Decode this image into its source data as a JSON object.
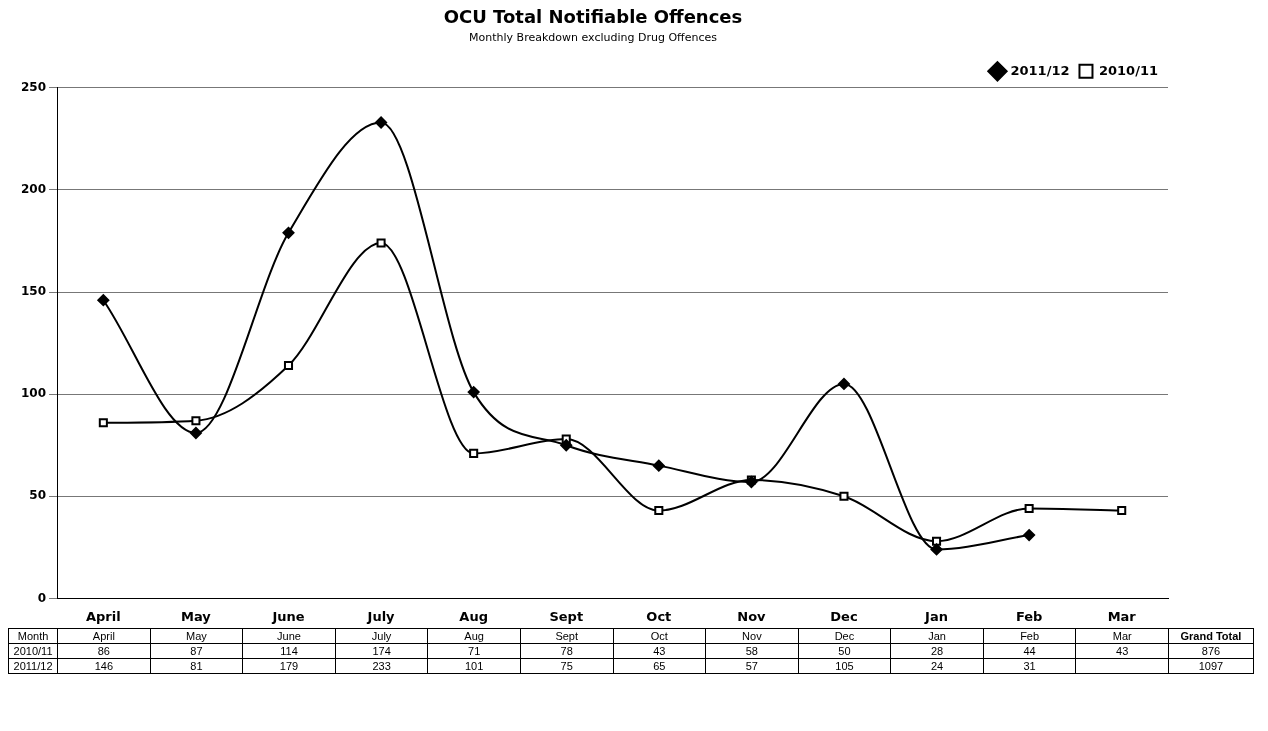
{
  "chart_data": {
    "type": "line",
    "title": "OCU Total Notifiable Offences",
    "subtitle": "Monthly Breakdown excluding Drug Offences",
    "xlabel": "Month",
    "categories": [
      "April",
      "May",
      "June",
      "July",
      "Aug",
      "Sept",
      "Oct",
      "Nov",
      "Dec",
      "Jan",
      "Feb",
      "Mar"
    ],
    "series": [
      {
        "name": "2011/12",
        "color": "#000000",
        "marker": "diamond",
        "values": [
          146,
          81,
          179,
          233,
          101,
          75,
          65,
          57,
          105,
          24,
          31,
          null
        ]
      },
      {
        "name": "2010/11",
        "color": "#000000",
        "marker": "square",
        "values": [
          86,
          87,
          114,
          174,
          71,
          78,
          43,
          58,
          50,
          28,
          44,
          43
        ]
      }
    ],
    "ylim": [
      0,
      250
    ],
    "yticks": [
      0,
      50,
      100,
      150,
      200,
      250
    ],
    "grid": "y",
    "legend": "top right",
    "data_labels": true,
    "annotations": [
      "Grand Total",
      "876",
      "1097"
    ]
  }
}
